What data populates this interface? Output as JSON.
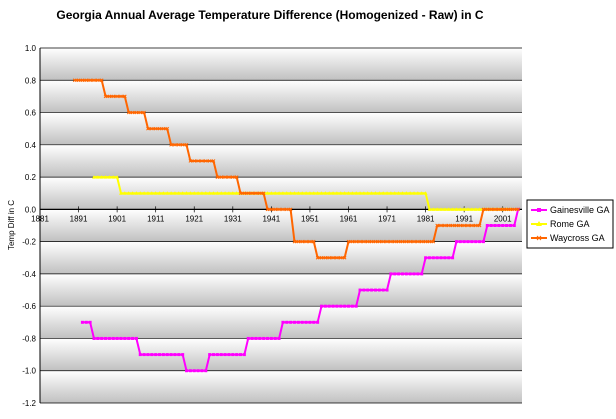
{
  "chart_data": {
    "type": "line",
    "title": "Georgia Annual Average Temperature Difference (Homogenized - Raw) in C",
    "xlabel": "",
    "ylabel": "Temp Diff in C",
    "xlim": [
      1881,
      2006
    ],
    "ylim": [
      -1.2,
      1.0
    ],
    "y_ticks": [
      "1.0",
      "0.8",
      "0.6",
      "0.4",
      "0.2",
      "0.0",
      "-0.2",
      "-0.4",
      "-0.6",
      "-0.8",
      "-1.0",
      "-1.2"
    ],
    "x_ticks": [
      "1881",
      "1891",
      "1901",
      "1911",
      "1921",
      "1931",
      "1941",
      "1951",
      "1961",
      "1971",
      "1981",
      "1991",
      "2001"
    ],
    "grid": "horizontal",
    "legend_position": "right",
    "series": [
      {
        "name": "Gainesville GA",
        "color": "#ff00ff",
        "marker": "square",
        "points": [
          [
            1892,
            -0.7
          ],
          [
            1894,
            -0.7
          ],
          [
            1895,
            -0.8
          ],
          [
            1906,
            -0.8
          ],
          [
            1907,
            -0.9
          ],
          [
            1917,
            -0.9
          ],
          [
            1919,
            -1.0
          ],
          [
            1924,
            -1.0
          ],
          [
            1925,
            -0.9
          ],
          [
            1934,
            -0.9
          ],
          [
            1935,
            -0.8
          ],
          [
            1943,
            -0.8
          ],
          [
            1944,
            -0.7
          ],
          [
            1953,
            -0.7
          ],
          [
            1954,
            -0.6
          ],
          [
            1963,
            -0.6
          ],
          [
            1964,
            -0.5
          ],
          [
            1971,
            -0.5
          ],
          [
            1972,
            -0.4
          ],
          [
            1980,
            -0.4
          ],
          [
            1981,
            -0.3
          ],
          [
            1988,
            -0.3
          ],
          [
            1989,
            -0.2
          ],
          [
            1996,
            -0.2
          ],
          [
            1997,
            -0.1
          ],
          [
            2004,
            -0.1
          ],
          [
            2005,
            0.0
          ]
        ]
      },
      {
        "name": "Rome GA",
        "color": "#ffff00",
        "marker": "triangle",
        "points": [
          [
            1895,
            0.2
          ],
          [
            1901,
            0.2
          ],
          [
            1902,
            0.1
          ],
          [
            1981,
            0.1
          ],
          [
            1982,
            0.0
          ],
          [
            2003,
            0.0
          ]
        ]
      },
      {
        "name": "Waycross GA",
        "color": "#ff6600",
        "marker": "x",
        "points": [
          [
            1890,
            0.8
          ],
          [
            1897,
            0.8
          ],
          [
            1898,
            0.7
          ],
          [
            1903,
            0.7
          ],
          [
            1904,
            0.6
          ],
          [
            1908,
            0.6
          ],
          [
            1909,
            0.5
          ],
          [
            1914,
            0.5
          ],
          [
            1915,
            0.4
          ],
          [
            1919,
            0.4
          ],
          [
            1920,
            0.3
          ],
          [
            1926,
            0.3
          ],
          [
            1927,
            0.2
          ],
          [
            1932,
            0.2
          ],
          [
            1933,
            0.1
          ],
          [
            1939,
            0.1
          ],
          [
            1940,
            0.0
          ],
          [
            1946,
            0.0
          ],
          [
            1947,
            -0.2
          ],
          [
            1952,
            -0.2
          ],
          [
            1953,
            -0.3
          ],
          [
            1960,
            -0.3
          ],
          [
            1961,
            -0.2
          ],
          [
            1983,
            -0.2
          ],
          [
            1984,
            -0.1
          ],
          [
            1995,
            -0.1
          ],
          [
            1996,
            0.0
          ],
          [
            2005,
            0.0
          ]
        ]
      }
    ]
  }
}
